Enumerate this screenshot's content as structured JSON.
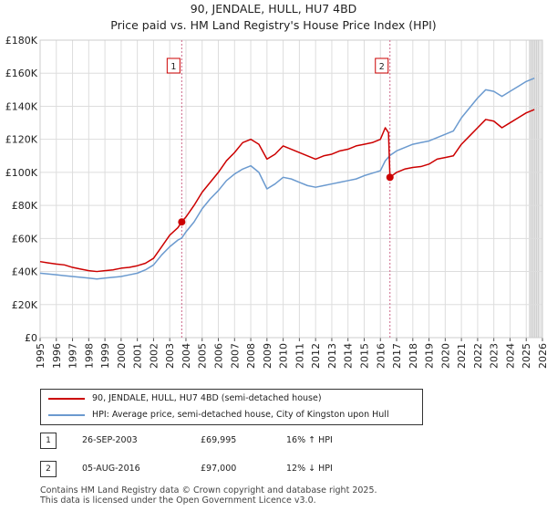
{
  "chart_data": {
    "type": "line",
    "title": "90, JENDALE, HULL, HU7 4BD",
    "subtitle": "Price paid vs. HM Land Registry's House Price Index (HPI)",
    "x_range": [
      1995,
      2026
    ],
    "ylim": [
      0,
      180000
    ],
    "y_ticks": [
      0,
      20000,
      40000,
      60000,
      80000,
      100000,
      120000,
      140000,
      160000,
      180000
    ],
    "y_tick_labels": [
      "£0",
      "£20K",
      "£40K",
      "£60K",
      "£80K",
      "£100K",
      "£120K",
      "£140K",
      "£160K",
      "£180K"
    ],
    "x_ticks": [
      1995,
      1996,
      1997,
      1998,
      1999,
      2000,
      2001,
      2002,
      2003,
      2004,
      2005,
      2006,
      2007,
      2008,
      2009,
      2010,
      2011,
      2012,
      2013,
      2014,
      2015,
      2016,
      2017,
      2018,
      2019,
      2020,
      2021,
      2022,
      2023,
      2024,
      2025,
      2026
    ],
    "x_tick_labels": [
      "1995",
      "1996",
      "1997",
      "1998",
      "1999",
      "2000",
      "2001",
      "2002",
      "2003",
      "2004",
      "2005",
      "2006",
      "2007",
      "2008",
      "2009",
      "2010",
      "2011",
      "2012",
      "2013",
      "2014",
      "2015",
      "2016",
      "2017",
      "2018",
      "2019",
      "2020",
      "2021",
      "2022",
      "2023",
      "2024",
      "2025",
      "2026"
    ],
    "grid": true,
    "series": [
      {
        "name": "90, JENDALE, HULL, HU7 4BD (semi-detached house)",
        "color": "#cc0000",
        "points": [
          [
            1995.0,
            46000
          ],
          [
            1995.5,
            45200
          ],
          [
            1996.0,
            44500
          ],
          [
            1996.5,
            44000
          ],
          [
            1997.0,
            42500
          ],
          [
            1997.5,
            41500
          ],
          [
            1998.0,
            40500
          ],
          [
            1998.5,
            40000
          ],
          [
            1999.0,
            40500
          ],
          [
            1999.5,
            41000
          ],
          [
            2000.0,
            42000
          ],
          [
            2000.5,
            42500
          ],
          [
            2001.0,
            43500
          ],
          [
            2001.5,
            45000
          ],
          [
            2002.0,
            48000
          ],
          [
            2002.5,
            55000
          ],
          [
            2003.0,
            62000
          ],
          [
            2003.5,
            66500
          ],
          [
            2003.74,
            69995
          ],
          [
            2004.0,
            73000
          ],
          [
            2004.5,
            80000
          ],
          [
            2005.0,
            88000
          ],
          [
            2005.5,
            94000
          ],
          [
            2006.0,
            100000
          ],
          [
            2006.5,
            107000
          ],
          [
            2007.0,
            112000
          ],
          [
            2007.5,
            118000
          ],
          [
            2008.0,
            120000
          ],
          [
            2008.5,
            117000
          ],
          [
            2009.0,
            108000
          ],
          [
            2009.5,
            111000
          ],
          [
            2010.0,
            116000
          ],
          [
            2010.5,
            114000
          ],
          [
            2011.0,
            112000
          ],
          [
            2011.5,
            110000
          ],
          [
            2012.0,
            108000
          ],
          [
            2012.5,
            110000
          ],
          [
            2013.0,
            111000
          ],
          [
            2013.5,
            113000
          ],
          [
            2014.0,
            114000
          ],
          [
            2014.5,
            116000
          ],
          [
            2015.0,
            117000
          ],
          [
            2015.5,
            118000
          ],
          [
            2016.0,
            120000
          ],
          [
            2016.3,
            127000
          ],
          [
            2016.5,
            124000
          ],
          [
            2016.59,
            97000
          ],
          [
            2017.0,
            100000
          ],
          [
            2017.5,
            102000
          ],
          [
            2018.0,
            103000
          ],
          [
            2018.5,
            103500
          ],
          [
            2019.0,
            105000
          ],
          [
            2019.5,
            108000
          ],
          [
            2020.0,
            109000
          ],
          [
            2020.5,
            110000
          ],
          [
            2021.0,
            117000
          ],
          [
            2021.5,
            122000
          ],
          [
            2022.0,
            127000
          ],
          [
            2022.5,
            132000
          ],
          [
            2023.0,
            131000
          ],
          [
            2023.5,
            127000
          ],
          [
            2024.0,
            130000
          ],
          [
            2024.5,
            133000
          ],
          [
            2025.0,
            136000
          ],
          [
            2025.5,
            138000
          ]
        ]
      },
      {
        "name": "HPI: Average price, semi-detached house, City of Kingston upon Hull",
        "color": "#6b9acf",
        "points": [
          [
            1995.0,
            39000
          ],
          [
            1995.5,
            38500
          ],
          [
            1996.0,
            38000
          ],
          [
            1996.5,
            37500
          ],
          [
            1997.0,
            37000
          ],
          [
            1997.5,
            36500
          ],
          [
            1998.0,
            36000
          ],
          [
            1998.5,
            35500
          ],
          [
            1999.0,
            36000
          ],
          [
            1999.5,
            36500
          ],
          [
            2000.0,
            37000
          ],
          [
            2000.5,
            38000
          ],
          [
            2001.0,
            39000
          ],
          [
            2001.5,
            41000
          ],
          [
            2002.0,
            44000
          ],
          [
            2002.5,
            50000
          ],
          [
            2003.0,
            55000
          ],
          [
            2003.5,
            59000
          ],
          [
            2003.74,
            60300
          ],
          [
            2004.0,
            64000
          ],
          [
            2004.5,
            70000
          ],
          [
            2005.0,
            78000
          ],
          [
            2005.5,
            84000
          ],
          [
            2006.0,
            89000
          ],
          [
            2006.5,
            95000
          ],
          [
            2007.0,
            99000
          ],
          [
            2007.5,
            102000
          ],
          [
            2008.0,
            104000
          ],
          [
            2008.5,
            100000
          ],
          [
            2009.0,
            90000
          ],
          [
            2009.5,
            93000
          ],
          [
            2010.0,
            97000
          ],
          [
            2010.5,
            96000
          ],
          [
            2011.0,
            94000
          ],
          [
            2011.5,
            92000
          ],
          [
            2012.0,
            91000
          ],
          [
            2012.5,
            92000
          ],
          [
            2013.0,
            93000
          ],
          [
            2013.5,
            94000
          ],
          [
            2014.0,
            95000
          ],
          [
            2014.5,
            96000
          ],
          [
            2015.0,
            98000
          ],
          [
            2015.5,
            99500
          ],
          [
            2016.0,
            101000
          ],
          [
            2016.3,
            107000
          ],
          [
            2016.59,
            110200
          ],
          [
            2017.0,
            113000
          ],
          [
            2017.5,
            115000
          ],
          [
            2018.0,
            117000
          ],
          [
            2018.5,
            118000
          ],
          [
            2019.0,
            119000
          ],
          [
            2019.5,
            121000
          ],
          [
            2020.0,
            123000
          ],
          [
            2020.5,
            125000
          ],
          [
            2021.0,
            133000
          ],
          [
            2021.5,
            139000
          ],
          [
            2022.0,
            145000
          ],
          [
            2022.5,
            150000
          ],
          [
            2023.0,
            149000
          ],
          [
            2023.5,
            146000
          ],
          [
            2024.0,
            149000
          ],
          [
            2024.5,
            152000
          ],
          [
            2025.0,
            155000
          ],
          [
            2025.5,
            157000
          ]
        ]
      }
    ],
    "sales": [
      {
        "label": "1",
        "x": 2003.74,
        "price": 69995
      },
      {
        "label": "2",
        "x": 2016.59,
        "price": 97000
      }
    ],
    "forecast_start": 2025.2
  },
  "legend": {
    "property_label": "90, JENDALE, HULL, HU7 4BD (semi-detached house)",
    "hpi_label": "HPI: Average price, semi-detached house, City of Kingston upon Hull"
  },
  "sales_table": [
    {
      "num": "1",
      "date": "26-SEP-2003",
      "price": "£69,995",
      "hpi": "16% ↑ HPI"
    },
    {
      "num": "2",
      "date": "05-AUG-2016",
      "price": "£97,000",
      "hpi": "12% ↓ HPI"
    }
  ],
  "footer": {
    "line1": "Contains HM Land Registry data © Crown copyright and database right 2025.",
    "line2": "This data is licensed under the Open Government Licence v3.0."
  },
  "colors": {
    "property": "#cc0000",
    "hpi": "#6b9acf",
    "grid": "#dddddd",
    "sale_line": "#cc6688"
  }
}
